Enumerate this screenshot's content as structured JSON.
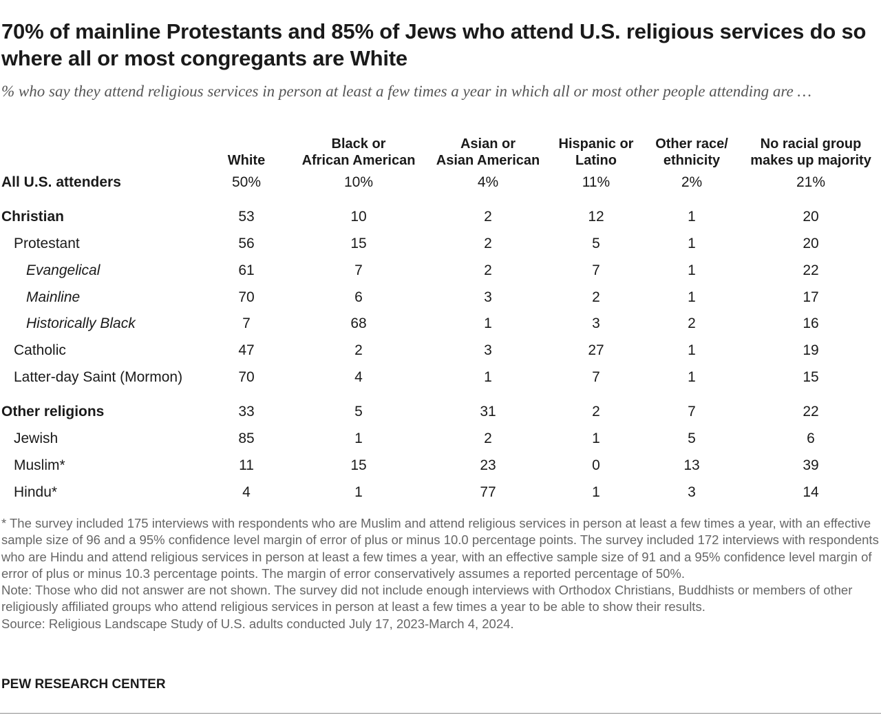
{
  "title": "70% of mainline Protestants and 85% of Jews who attend U.S. religious services do so where all or most congregants are White",
  "subtitle": "% who say they attend religious services in person at least a few times a year in which all or most other people attending are …",
  "chart_data": {
    "type": "table",
    "columns": [
      {
        "line1": "",
        "line2": "White"
      },
      {
        "line1": "Black or",
        "line2": "African American"
      },
      {
        "line1": "Asian or",
        "line2": "Asian American"
      },
      {
        "line1": "Hispanic or",
        "line2": "Latino"
      },
      {
        "line1": "Other race/",
        "line2": "ethnicity"
      },
      {
        "line1": "No racial group",
        "line2": "makes up majority"
      }
    ],
    "rows": [
      {
        "label": "All U.S. attenders",
        "style": "bold",
        "values": [
          "50%",
          "10%",
          "4%",
          "11%",
          "2%",
          "21%"
        ]
      },
      {
        "label": "Christian",
        "style": "bold",
        "values": [
          "53",
          "10",
          "2",
          "12",
          "1",
          "20"
        ]
      },
      {
        "label": "Protestant",
        "style": "indent1",
        "values": [
          "56",
          "15",
          "2",
          "5",
          "1",
          "20"
        ]
      },
      {
        "label": "Evangelical",
        "style": "indent2-italic",
        "values": [
          "61",
          "7",
          "2",
          "7",
          "1",
          "22"
        ]
      },
      {
        "label": "Mainline",
        "style": "indent2-italic",
        "values": [
          "70",
          "6",
          "3",
          "2",
          "1",
          "17"
        ]
      },
      {
        "label": "Historically Black",
        "style": "indent2-italic",
        "values": [
          "7",
          "68",
          "1",
          "3",
          "2",
          "16"
        ]
      },
      {
        "label": "Catholic",
        "style": "indent1",
        "values": [
          "47",
          "2",
          "3",
          "27",
          "1",
          "19"
        ]
      },
      {
        "label": "Latter-day Saint (Mormon)",
        "style": "indent1",
        "values": [
          "70",
          "4",
          "1",
          "7",
          "1",
          "15"
        ]
      },
      {
        "label": "Other religions",
        "style": "bold",
        "values": [
          "33",
          "5",
          "31",
          "2",
          "7",
          "22"
        ]
      },
      {
        "label": "Jewish",
        "style": "indent1",
        "values": [
          "85",
          "1",
          "2",
          "1",
          "5",
          "6"
        ]
      },
      {
        "label": "Muslim*",
        "style": "indent1",
        "values": [
          "11",
          "15",
          "23",
          "0",
          "13",
          "39"
        ]
      },
      {
        "label": "Hindu*",
        "style": "indent1",
        "values": [
          "4",
          "1",
          "77",
          "1",
          "3",
          "14"
        ]
      }
    ]
  },
  "notes": {
    "asterisk": "* The survey included 175 interviews with respondents who are Muslim and attend religious services in person at least a few times a year, with an effective sample size of 96 and a 95% confidence level margin of error of plus or minus 10.0 percentage points. The survey included 172 interviews with respondents who are Hindu and attend religious services in person at least a few times a year, with an effective sample size of 91 and a 95% confidence level margin of error of plus or minus 10.3 percentage points. The margin of error conservatively assumes a reported percentage of 50%.",
    "note": "Note: Those who did not answer are not shown. The survey did not include enough interviews with Orthodox Christians, Buddhists or members of other religiously affiliated groups who attend religious services in person at least a few times a year to be able to show their results.",
    "source": "Source: Religious Landscape Study of U.S. adults conducted July 17, 2023-March 4, 2024."
  },
  "brand": "PEW RESEARCH CENTER"
}
